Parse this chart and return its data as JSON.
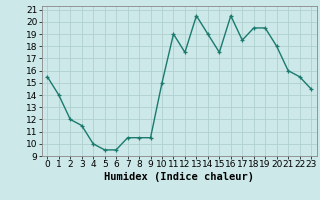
{
  "x": [
    0,
    1,
    2,
    3,
    4,
    5,
    6,
    7,
    8,
    9,
    10,
    11,
    12,
    13,
    14,
    15,
    16,
    17,
    18,
    19,
    20,
    21,
    22,
    23
  ],
  "y": [
    15.5,
    14.0,
    12.0,
    11.5,
    10.0,
    9.5,
    9.5,
    10.5,
    10.5,
    10.5,
    15.0,
    19.0,
    17.5,
    20.5,
    19.0,
    17.5,
    20.5,
    18.5,
    19.5,
    19.5,
    18.0,
    16.0,
    15.5,
    14.5
  ],
  "line_color": "#1a7a6e",
  "marker": "+",
  "bg_color": "#cce8e8",
  "grid_color": "#b0d0d0",
  "xlabel": "Humidex (Indice chaleur)",
  "ylim": [
    9,
    21
  ],
  "xlim": [
    -0.5,
    23.5
  ],
  "yticks": [
    9,
    10,
    11,
    12,
    13,
    14,
    15,
    16,
    17,
    18,
    19,
    20,
    21
  ],
  "xticks": [
    0,
    1,
    2,
    3,
    4,
    5,
    6,
    7,
    8,
    9,
    10,
    11,
    12,
    13,
    14,
    15,
    16,
    17,
    18,
    19,
    20,
    21,
    22,
    23
  ],
  "xlabel_fontsize": 7.5,
  "tick_fontsize": 6.5,
  "linewidth": 1.0,
  "markersize": 3.5,
  "markeredgewidth": 0.9
}
